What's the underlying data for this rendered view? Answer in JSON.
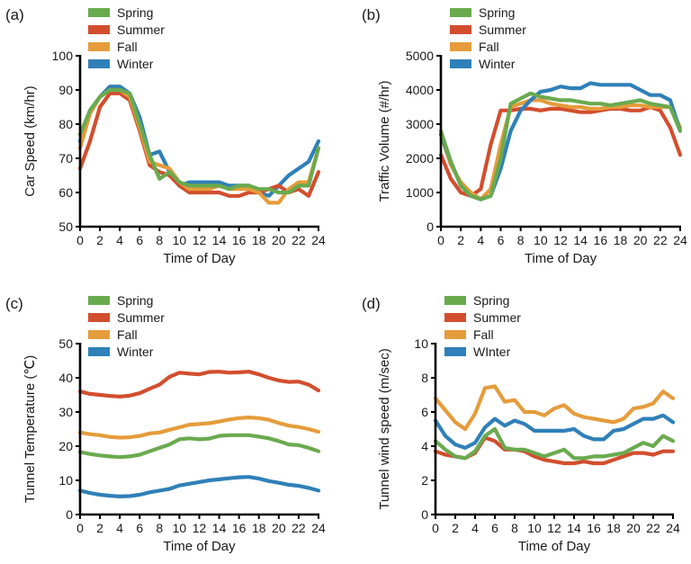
{
  "colors": {
    "Spring": "#6aaa4f",
    "Summer": "#d24e2e",
    "Fall": "#e59c3b",
    "Winter": "#2f80b8",
    "axis": "#000000"
  },
  "chart_data": [
    {
      "type": "line",
      "panel_label": "(a)",
      "xlabel": "Time of Day",
      "ylabel": "Car Speed (km/hr)",
      "xlim": [
        0,
        24
      ],
      "ylim": [
        50,
        100
      ],
      "xticks": [
        "0",
        "2",
        "4",
        "6",
        "8",
        "10",
        "12",
        "14",
        "16",
        "18",
        "20",
        "22",
        "24"
      ],
      "yticks": [
        "50",
        "60",
        "70",
        "80",
        "90",
        "100"
      ],
      "legend": [
        "Spring",
        "Summer",
        "Fall",
        "Winter"
      ],
      "x": [
        0,
        1,
        2,
        3,
        4,
        5,
        6,
        7,
        8,
        9,
        10,
        11,
        12,
        13,
        14,
        15,
        16,
        17,
        18,
        19,
        20,
        21,
        22,
        23,
        24
      ],
      "series": [
        {
          "name": "Winter",
          "values": [
            75,
            84,
            88,
            91,
            91,
            89,
            82,
            71,
            72,
            66,
            62,
            63,
            63,
            63,
            63,
            62,
            62,
            62,
            60,
            59,
            62,
            65,
            67,
            69,
            75
          ]
        },
        {
          "name": "Summer",
          "values": [
            67,
            75,
            85,
            89,
            89,
            87,
            78,
            68,
            66,
            65,
            62,
            60,
            60,
            60,
            60,
            59,
            59,
            60,
            60,
            61,
            62,
            60,
            61,
            59,
            66
          ]
        },
        {
          "name": "Fall",
          "values": [
            73,
            83,
            88,
            90,
            90,
            88,
            79,
            69,
            68,
            67,
            63,
            61,
            61,
            61,
            62,
            61,
            61,
            61,
            60,
            57,
            57,
            61,
            63,
            63,
            73
          ]
        },
        {
          "name": "Spring",
          "values": [
            77,
            84,
            88,
            90,
            90,
            89,
            80,
            71,
            64,
            66,
            63,
            62,
            62,
            62,
            62,
            61,
            62,
            62,
            61,
            61,
            60,
            60,
            62,
            62,
            73
          ]
        }
      ]
    },
    {
      "type": "line",
      "panel_label": "(b)",
      "xlabel": "Time of Day",
      "ylabel": "Traffic Volume (#/hr)",
      "xlim": [
        0,
        24
      ],
      "ylim": [
        0,
        5000
      ],
      "xticks": [
        "0",
        "2",
        "4",
        "6",
        "8",
        "10",
        "12",
        "14",
        "16",
        "18",
        "20",
        "22",
        "24"
      ],
      "yticks": [
        "0",
        "1000",
        "2000",
        "3000",
        "4000",
        "5000"
      ],
      "legend": [
        "Spring",
        "Summer",
        "Fall",
        "Winter"
      ],
      "x": [
        0,
        1,
        2,
        3,
        4,
        5,
        6,
        7,
        8,
        9,
        10,
        11,
        12,
        13,
        14,
        15,
        16,
        17,
        18,
        19,
        20,
        21,
        22,
        23,
        24
      ],
      "series": [
        {
          "name": "Summer",
          "values": [
            2100,
            1400,
            1000,
            900,
            1100,
            2400,
            3400,
            3400,
            3450,
            3450,
            3400,
            3450,
            3450,
            3400,
            3350,
            3350,
            3400,
            3450,
            3450,
            3400,
            3400,
            3500,
            3400,
            2900,
            2100
          ]
        },
        {
          "name": "Fall",
          "values": [
            2700,
            1800,
            1300,
            1000,
            800,
            1100,
            2400,
            3500,
            3600,
            3700,
            3700,
            3600,
            3550,
            3500,
            3500,
            3450,
            3450,
            3500,
            3500,
            3550,
            3550,
            3500,
            3500,
            3500,
            2900
          ]
        },
        {
          "name": "Winter",
          "values": [
            2700,
            1900,
            1200,
            900,
            800,
            900,
            1700,
            2800,
            3400,
            3700,
            3950,
            4000,
            4100,
            4050,
            4050,
            4200,
            4150,
            4150,
            4150,
            4150,
            4000,
            3850,
            3850,
            3700,
            2800
          ]
        },
        {
          "name": "Spring",
          "values": [
            2800,
            1900,
            1200,
            900,
            800,
            900,
            2000,
            3600,
            3750,
            3900,
            3800,
            3750,
            3700,
            3700,
            3650,
            3600,
            3600,
            3550,
            3600,
            3650,
            3700,
            3600,
            3550,
            3500,
            2800
          ]
        }
      ]
    },
    {
      "type": "line",
      "panel_label": "(c)",
      "xlabel": "Time of Day",
      "ylabel": "Tunnel Temperature (℃)",
      "xlim": [
        0,
        24
      ],
      "ylim": [
        0,
        50
      ],
      "xticks": [
        "0",
        "2",
        "4",
        "6",
        "8",
        "10",
        "12",
        "14",
        "16",
        "18",
        "20",
        "22",
        "24"
      ],
      "yticks": [
        "0",
        "10",
        "20",
        "30",
        "40",
        "50"
      ],
      "legend": [
        "Spring",
        "Summer",
        "Fall",
        "Winter"
      ],
      "x": [
        0,
        1,
        2,
        3,
        4,
        5,
        6,
        7,
        8,
        9,
        10,
        11,
        12,
        13,
        14,
        15,
        16,
        17,
        18,
        19,
        20,
        21,
        22,
        23,
        24
      ],
      "series": [
        {
          "name": "Spring",
          "values": [
            18.3,
            17.7,
            17.3,
            17.0,
            16.8,
            17.0,
            17.5,
            18.5,
            19.5,
            20.5,
            22.0,
            22.3,
            22.0,
            22.2,
            23.0,
            23.2,
            23.2,
            23.2,
            22.8,
            22.3,
            21.5,
            20.5,
            20.3,
            19.5,
            18.5
          ]
        },
        {
          "name": "Summer",
          "values": [
            36.0,
            35.3,
            35.0,
            34.7,
            34.5,
            34.8,
            35.5,
            36.8,
            38.0,
            40.3,
            41.5,
            41.2,
            41.0,
            41.7,
            41.8,
            41.5,
            41.6,
            41.8,
            41.0,
            40.0,
            39.2,
            38.8,
            38.9,
            38.0,
            36.3
          ]
        },
        {
          "name": "Fall",
          "values": [
            24.0,
            23.5,
            23.2,
            22.7,
            22.5,
            22.6,
            23.0,
            23.7,
            24.0,
            24.8,
            25.5,
            26.3,
            26.5,
            26.7,
            27.2,
            27.8,
            28.2,
            28.4,
            28.2,
            27.7,
            26.8,
            26.0,
            25.6,
            25.0,
            24.2
          ]
        },
        {
          "name": "Winter",
          "values": [
            7.0,
            6.3,
            5.8,
            5.5,
            5.3,
            5.4,
            5.8,
            6.5,
            7.0,
            7.5,
            8.5,
            9.0,
            9.5,
            10.0,
            10.3,
            10.6,
            10.9,
            11.0,
            10.5,
            9.8,
            9.3,
            8.7,
            8.4,
            7.8,
            7.0
          ]
        }
      ]
    },
    {
      "type": "line",
      "panel_label": "(d)",
      "xlabel": "Time of Day",
      "ylabel": "Tunnel wind speed (m/sec)",
      "xlim": [
        0,
        24
      ],
      "ylim": [
        0,
        10
      ],
      "xticks": [
        "0",
        "2",
        "4",
        "6",
        "8",
        "10",
        "12",
        "14",
        "16",
        "18",
        "20",
        "22",
        "24"
      ],
      "yticks": [
        "0",
        "2",
        "4",
        "6",
        "8",
        "10"
      ],
      "legend": [
        "Spring",
        "Summer",
        "Fall",
        "WInter"
      ],
      "x": [
        0,
        1,
        2,
        3,
        4,
        5,
        6,
        7,
        8,
        9,
        10,
        11,
        12,
        13,
        14,
        15,
        16,
        17,
        18,
        19,
        20,
        21,
        22,
        23,
        24
      ],
      "series": [
        {
          "name": "Summer",
          "values": [
            3.7,
            3.5,
            3.4,
            3.3,
            3.6,
            4.5,
            4.3,
            3.8,
            3.8,
            3.7,
            3.4,
            3.2,
            3.1,
            3.0,
            3.0,
            3.1,
            3.0,
            3.0,
            3.2,
            3.4,
            3.6,
            3.6,
            3.5,
            3.7,
            3.7
          ]
        },
        {
          "name": "Fall",
          "values": [
            6.8,
            6.1,
            5.4,
            5.0,
            5.9,
            7.4,
            7.5,
            6.6,
            6.7,
            6.0,
            6.0,
            5.8,
            6.2,
            6.4,
            5.9,
            5.7,
            5.6,
            5.5,
            5.4,
            5.6,
            6.2,
            6.3,
            6.5,
            7.2,
            6.8
          ]
        },
        {
          "name": "WInter",
          "values": [
            5.5,
            4.6,
            4.1,
            3.9,
            4.2,
            5.1,
            5.6,
            5.2,
            5.5,
            5.3,
            4.9,
            4.9,
            4.9,
            4.9,
            5.0,
            4.6,
            4.4,
            4.4,
            4.9,
            5.0,
            5.3,
            5.6,
            5.6,
            5.8,
            5.4
          ]
        },
        {
          "name": "Spring",
          "values": [
            4.3,
            3.8,
            3.4,
            3.3,
            3.7,
            4.6,
            5.0,
            3.9,
            3.8,
            3.8,
            3.6,
            3.4,
            3.6,
            3.8,
            3.3,
            3.3,
            3.4,
            3.4,
            3.5,
            3.6,
            3.9,
            4.2,
            4.0,
            4.6,
            4.3
          ]
        }
      ]
    }
  ]
}
